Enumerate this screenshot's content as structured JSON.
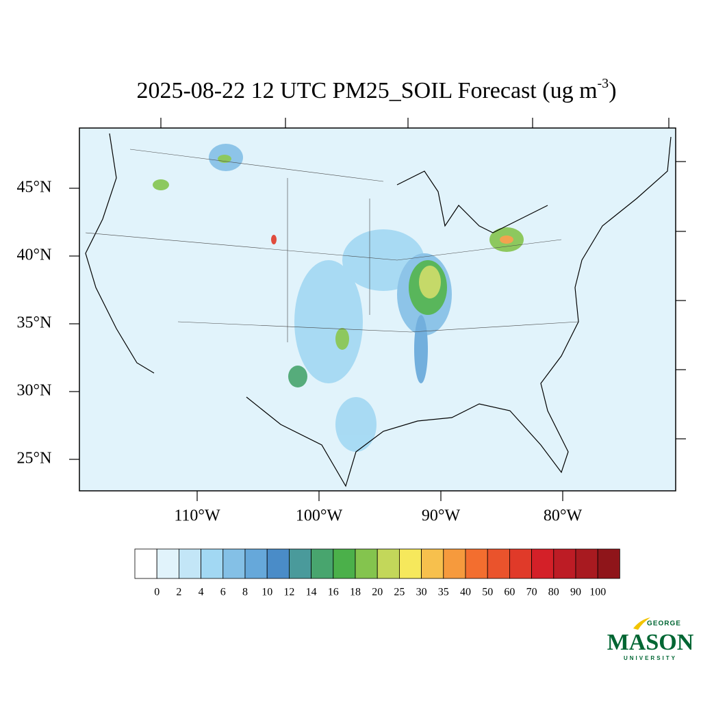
{
  "title": {
    "text": "2025-08-22 12 UTC PM25_SOIL Forecast (ug m",
    "superscript": "-3",
    "close": ")"
  },
  "map": {
    "lat_labels": [
      "45°N",
      "40°N",
      "35°N",
      "30°N",
      "25°N"
    ],
    "lon_labels": [
      "110°W",
      "100°W",
      "90°W",
      "80°W"
    ]
  },
  "colorbar": {
    "colors": [
      "#ffffff",
      "#e1f3fb",
      "#c3e6f7",
      "#a2d8f3",
      "#84c0e6",
      "#66a8da",
      "#4a8cc8",
      "#4a9a9b",
      "#48a56e",
      "#4bb04a",
      "#84c44e",
      "#c3d75a",
      "#f6e85c",
      "#f7c04d",
      "#f69a3d",
      "#f36e2f",
      "#ea532c",
      "#e03a29",
      "#d42028",
      "#bd1c25",
      "#a81a20",
      "#8f151a"
    ],
    "labels": [
      0,
      2,
      4,
      6,
      8,
      10,
      12,
      14,
      16,
      18,
      20,
      25,
      30,
      35,
      40,
      50,
      60,
      70,
      80,
      90,
      100
    ]
  },
  "logo": {
    "top": "GEORGE",
    "main": "MASON",
    "bottom": "UNIVERSITY"
  }
}
